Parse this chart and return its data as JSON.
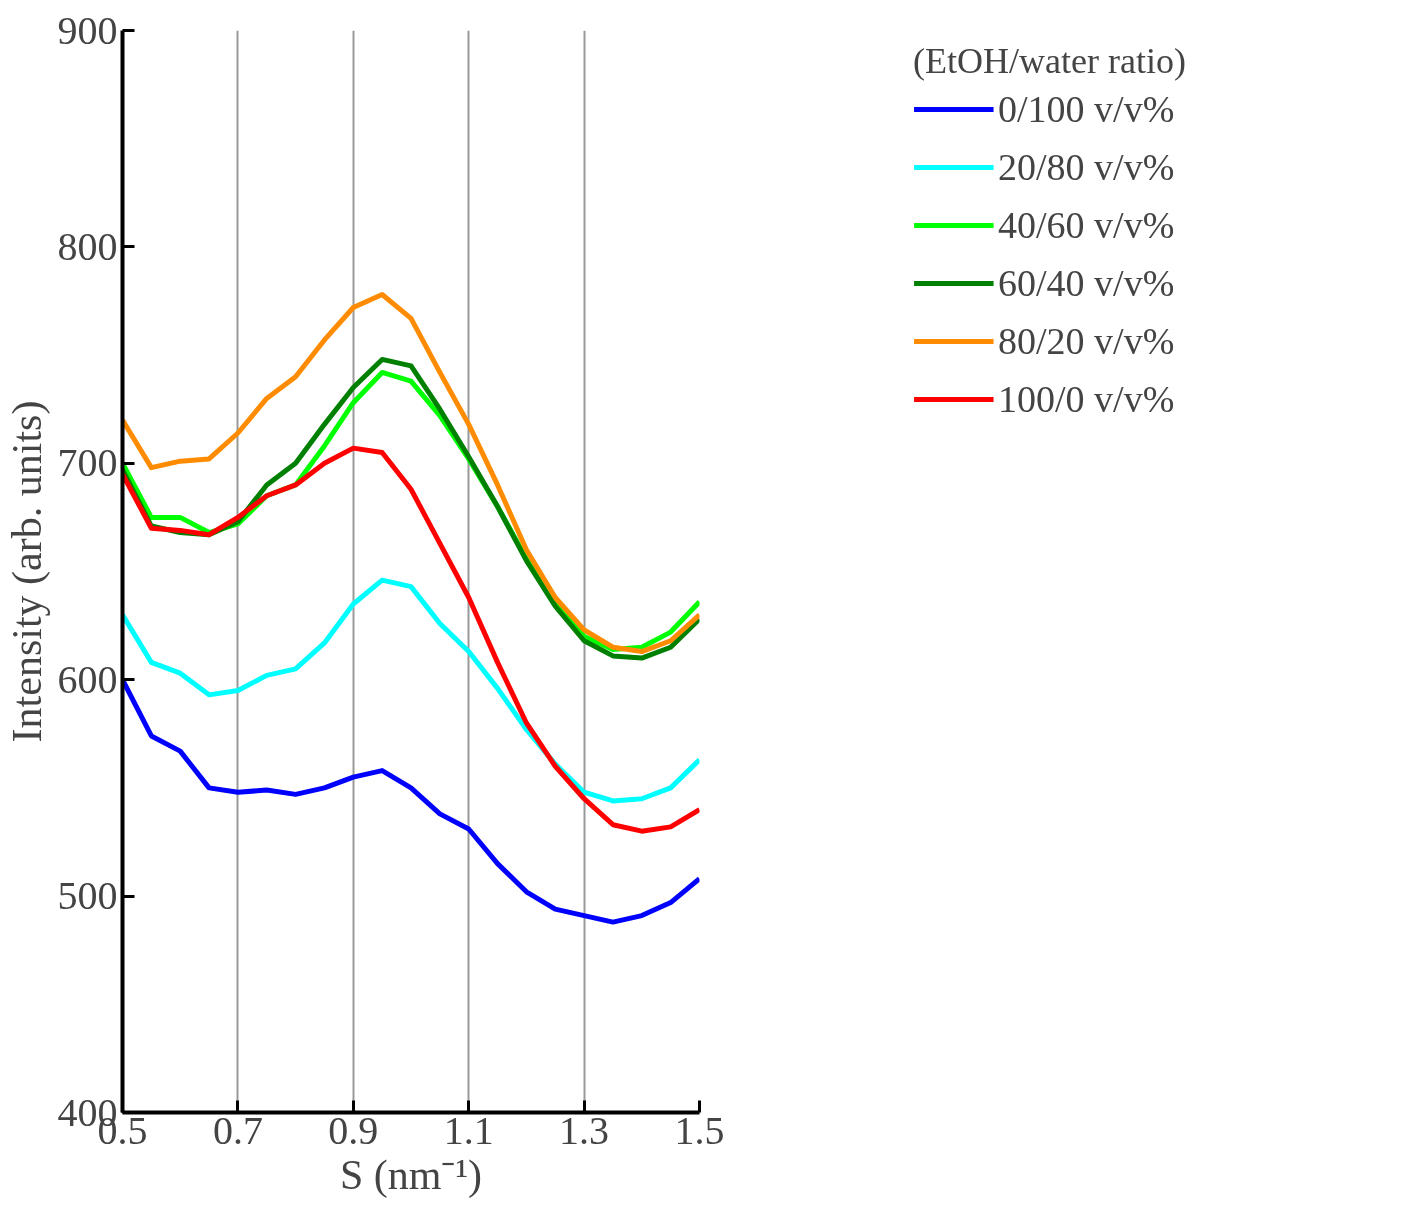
{
  "chart_data": {
    "type": "line",
    "xlabel": "S (nm⁻¹)",
    "ylabel": "Intensity (arb. units)",
    "legend_title": "(EtOH/water ratio)",
    "x": [
      0.5,
      0.55,
      0.6,
      0.65,
      0.7,
      0.75,
      0.8,
      0.85,
      0.9,
      0.95,
      1.0,
      1.05,
      1.1,
      1.15,
      1.2,
      1.25,
      1.3,
      1.35,
      1.4,
      1.45,
      1.5
    ],
    "series": [
      {
        "name": "0/100 v/v%",
        "color": "#0000ff",
        "values": [
          600,
          574,
          567,
          550,
          548,
          549,
          547,
          550,
          555,
          558,
          550,
          538,
          531,
          515,
          502,
          494,
          491,
          488,
          491,
          497,
          508
        ]
      },
      {
        "name": "20/80 v/v%",
        "color": "#00ffff",
        "values": [
          630,
          608,
          603,
          593,
          595,
          602,
          605,
          617,
          635,
          646,
          643,
          626,
          613,
          596,
          577,
          561,
          548,
          544,
          545,
          550,
          563
        ]
      },
      {
        "name": "40/60 v/v%",
        "color": "#00ff00",
        "values": [
          700,
          675,
          675,
          668,
          672,
          685,
          690,
          708,
          728,
          742,
          738,
          722,
          702,
          680,
          656,
          635,
          620,
          614,
          615,
          622,
          636
        ]
      },
      {
        "name": "60/40 v/v%",
        "color": "#008000",
        "values": [
          697,
          671,
          668,
          667,
          673,
          690,
          700,
          718,
          735,
          748,
          745,
          725,
          703,
          680,
          655,
          634,
          618,
          611,
          610,
          615,
          628
        ]
      },
      {
        "name": "80/20 v/v%",
        "color": "#ff8c00",
        "values": [
          720,
          698,
          701,
          702,
          714,
          730,
          740,
          757,
          772,
          778,
          767,
          742,
          718,
          690,
          660,
          638,
          623,
          615,
          613,
          618,
          630
        ]
      },
      {
        "name": "100/0 v/v%",
        "color": "#ff0000",
        "values": [
          695,
          670,
          669,
          667,
          675,
          685,
          690,
          700,
          707,
          705,
          688,
          663,
          638,
          608,
          580,
          560,
          545,
          533,
          530,
          532,
          540
        ]
      }
    ],
    "xlim": [
      0.5,
      1.5
    ],
    "ylim": [
      400,
      900
    ],
    "xticks": [
      0.5,
      0.7,
      0.9,
      1.1,
      1.3,
      1.5
    ],
    "yticks": [
      400,
      500,
      600,
      700,
      800,
      900
    ],
    "grid": "x",
    "legend": "top right",
    "marker": "none",
    "line_style": "solid"
  }
}
